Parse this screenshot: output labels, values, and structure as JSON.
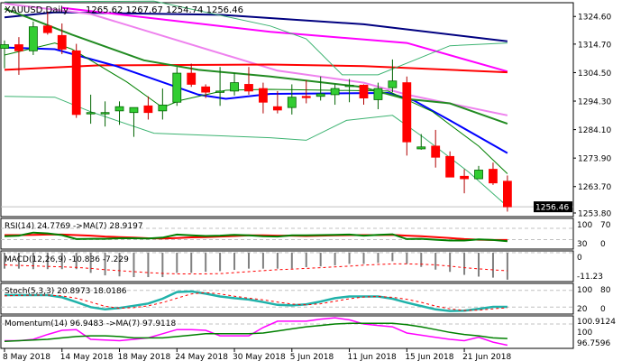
{
  "header": {
    "symbol": "XAUUSD,Daily",
    "ohlc": "1265.62 1267.67 1254.74 1256.46"
  },
  "colors": {
    "bull": "#32CD32",
    "bull_edge": "#006400",
    "bear": "#FF0000",
    "bear_edge": "#B00000",
    "grid": "#C0C0C0"
  },
  "chart_data": [
    {
      "type": "candlestick",
      "title": "XAUUSD,Daily",
      "ylim": [
        1253.6,
        1329.2
      ],
      "ytick_labels": [
        "1324.60",
        "1314.70",
        "1304.50",
        "1294.30",
        "1284.10",
        "1273.90",
        "1263.70",
        "1253.80"
      ],
      "current_price_label": "1256.46",
      "current_price": 1256.46,
      "x_labels": [
        {
          "candle": 1,
          "label": "8 May 2018"
        },
        {
          "candle": 5,
          "label": "14 May 2018"
        },
        {
          "candle": 9,
          "label": "18 May 2018"
        },
        {
          "candle": 13,
          "label": "24 May 2018"
        },
        {
          "candle": 17,
          "label": "30 May 2018"
        },
        {
          "candle": 21,
          "label": "5 Jun 2018"
        },
        {
          "candle": 25,
          "label": "11 Jun 2018"
        },
        {
          "candle": 29,
          "label": "15 Jun 2018"
        },
        {
          "candle": 33,
          "label": "21 Jun 2018"
        }
      ],
      "candles": [
        [
          1313.2,
          1316.0,
          1306.0,
          1314.5
        ],
        [
          1314.5,
          1317.2,
          1303.7,
          1312.3
        ],
        [
          1312.3,
          1322.8,
          1310.8,
          1320.9
        ],
        [
          1321.2,
          1326.4,
          1318.1,
          1318.8
        ],
        [
          1317.8,
          1322.1,
          1311.1,
          1312.9
        ],
        [
          1312.3,
          1314.8,
          1288.3,
          1289.5
        ],
        [
          1289.9,
          1296.6,
          1286.2,
          1290.2
        ],
        [
          1289.9,
          1294.2,
          1285.2,
          1290.2
        ],
        [
          1290.8,
          1294.2,
          1285.8,
          1292.3
        ],
        [
          1290.2,
          1292.0,
          1281.5,
          1292.0
        ],
        [
          1292.6,
          1296.0,
          1287.7,
          1290.2
        ],
        [
          1290.8,
          1298.8,
          1287.7,
          1292.9
        ],
        [
          1293.9,
          1306.5,
          1292.6,
          1304.3
        ],
        [
          1304.3,
          1307.7,
          1299.4,
          1300.3
        ],
        [
          1299.4,
          1300.3,
          1295.4,
          1297.5
        ],
        [
          1297.5,
          1306.5,
          1292.6,
          1297.9
        ],
        [
          1297.9,
          1304.3,
          1296.3,
          1300.9
        ],
        [
          1300.3,
          1306.5,
          1296.6,
          1297.9
        ],
        [
          1298.8,
          1300.9,
          1289.9,
          1293.9
        ],
        [
          1292.3,
          1297.9,
          1289.9,
          1291.1
        ],
        [
          1292.0,
          1300.3,
          1289.5,
          1295.7
        ],
        [
          1296.0,
          1301.8,
          1293.5,
          1295.7
        ],
        [
          1296.0,
          1303.1,
          1294.5,
          1296.9
        ],
        [
          1296.6,
          1300.3,
          1293.0,
          1298.8
        ],
        [
          1299.7,
          1302.2,
          1293.9,
          1300.0
        ],
        [
          1300.0,
          1300.3,
          1293.0,
          1295.4
        ],
        [
          1294.8,
          1300.9,
          1291.4,
          1298.8
        ],
        [
          1299.1,
          1309.2,
          1297.5,
          1301.5
        ],
        [
          1300.9,
          1303.1,
          1274.8,
          1279.7
        ],
        [
          1277.2,
          1282.5,
          1276.9,
          1277.9
        ],
        [
          1278.2,
          1284.0,
          1270.5,
          1274.2
        ],
        [
          1274.5,
          1276.3,
          1267.1,
          1267.1
        ],
        [
          1267.4,
          1269.9,
          1261.3,
          1266.5
        ],
        [
          1266.5,
          1271.1,
          1266.5,
          1269.6
        ],
        [
          1269.9,
          1272.3,
          1264.3,
          1265.0
        ],
        [
          1265.62,
          1267.67,
          1254.74,
          1256.46
        ]
      ],
      "overlays": [
        {
          "name": "ma-navy",
          "color": "#000080",
          "width": 2,
          "points": [
            [
              1,
              1324.3
            ],
            [
              4.5,
              1326.1
            ],
            [
              16,
              1325.2
            ],
            [
              26,
              1321.8
            ],
            [
              36,
              1315.7
            ]
          ]
        },
        {
          "name": "ma-magenta",
          "color": "#FF00FF",
          "width": 2,
          "points": [
            [
              5,
              1327.7
            ],
            [
              19.5,
              1319.1
            ],
            [
              29,
              1315.1
            ],
            [
              36,
              1304.9
            ]
          ]
        },
        {
          "name": "ma-violet",
          "color": "#EE82EE",
          "width": 2,
          "points": [
            [
              1,
              1329.2
            ],
            [
              7,
              1325.5
            ],
            [
              20,
              1305.2
            ],
            [
              26,
              1300.9
            ],
            [
              29,
              1296.6
            ],
            [
              36,
              1289.2
            ]
          ]
        },
        {
          "name": "ma-red",
          "color": "#FF0000",
          "width": 2,
          "points": [
            [
              1,
              1305.5
            ],
            [
              7.6,
              1307.1
            ],
            [
              19.5,
              1307.4
            ],
            [
              26,
              1306.8
            ],
            [
              36,
              1304.6
            ]
          ]
        },
        {
          "name": "ma-blue",
          "color": "#0000FF",
          "width": 2,
          "points": [
            [
              1,
              1313.5
            ],
            [
              4.5,
              1312.9
            ],
            [
              8.8,
              1306.8
            ],
            [
              14.5,
              1296.6
            ],
            [
              16.4,
              1295.1
            ],
            [
              19.5,
              1296.9
            ],
            [
              27.7,
              1297.2
            ],
            [
              29.5,
              1294.5
            ],
            [
              32,
              1287.4
            ],
            [
              36,
              1275.7
            ]
          ]
        },
        {
          "name": "ma-green",
          "color": "#228B22",
          "width": 2,
          "points": [
            [
              1,
              1327.4
            ],
            [
              2.6,
              1324.3
            ],
            [
              5.7,
              1318.1
            ],
            [
              10.7,
              1308.9
            ],
            [
              14.5,
              1305.5
            ],
            [
              19.5,
              1303.1
            ],
            [
              25.8,
              1299.4
            ],
            [
              28.9,
              1295.1
            ],
            [
              32,
              1293.5
            ],
            [
              36,
              1286.2
            ]
          ]
        },
        {
          "name": "bollinger-middle",
          "color": "#008000",
          "width": 1,
          "points": [
            [
              1,
              1310.8
            ],
            [
              4.5,
              1315.1
            ],
            [
              5.7,
              1312.9
            ],
            [
              9.5,
              1301.2
            ],
            [
              12,
              1292.0
            ],
            [
              13.2,
              1294.5
            ],
            [
              16.4,
              1298.2
            ],
            [
              19.5,
              1298.5
            ],
            [
              27.7,
              1297.9
            ],
            [
              30.8,
              1290.5
            ],
            [
              34,
              1278.2
            ],
            [
              36,
              1268.3
            ]
          ]
        },
        {
          "name": "bollinger-upper",
          "color": "#3CB371",
          "width": 1,
          "points": [
            [
              1,
              1329.8
            ],
            [
              11.4,
              1330.1
            ],
            [
              19.5,
              1321.2
            ],
            [
              22,
              1316.6
            ],
            [
              24.5,
              1303.7
            ],
            [
              27,
              1303.7
            ],
            [
              29.5,
              1308.9
            ],
            [
              32,
              1314.1
            ],
            [
              36,
              1315.1
            ]
          ]
        },
        {
          "name": "bollinger-lower",
          "color": "#3CB371",
          "width": 1,
          "points": [
            [
              1,
              1296.0
            ],
            [
              4.5,
              1295.7
            ],
            [
              7,
              1290.5
            ],
            [
              11.4,
              1282.8
            ],
            [
              19.5,
              1281.2
            ],
            [
              22,
              1280.3
            ],
            [
              24.8,
              1287.4
            ],
            [
              28,
              1289.2
            ],
            [
              30.2,
              1281.2
            ],
            [
              33.3,
              1268.9
            ],
            [
              36,
              1256.6
            ]
          ]
        }
      ]
    },
    {
      "type": "line",
      "title": "RSI(14) 24.7769  ->MA(7) 28.9197",
      "ylim": [
        0,
        100
      ],
      "levels": [
        70,
        30
      ],
      "ytick_labels": [
        "100",
        "70",
        "30",
        "0"
      ],
      "series": [
        {
          "name": "RSI(14)",
          "color": "#008000",
          "values": [
            42,
            44,
            55,
            52,
            46,
            32,
            33,
            33,
            35,
            35,
            34,
            37,
            48,
            45,
            43,
            44,
            47,
            45,
            42,
            41,
            45,
            45,
            46,
            47,
            48,
            44,
            47,
            49,
            32,
            33,
            30,
            27,
            27,
            31,
            29,
            24.7769
          ]
        },
        {
          "name": "MA(7)",
          "color": "#FF0000",
          "values": [
            46,
            46,
            47,
            48,
            48,
            46,
            44,
            41,
            39,
            37,
            35,
            34,
            36,
            38,
            39,
            41,
            43,
            45,
            45,
            44,
            44,
            43,
            44,
            45,
            46,
            46,
            46,
            47,
            44,
            42,
            39,
            36,
            32,
            30,
            29,
            28.9197
          ]
        }
      ]
    },
    {
      "type": "bar",
      "title": "MACD(12,26,9) -10.836 -7.229",
      "ylim": [
        -11.23,
        0
      ],
      "ytick_labels": [
        "0",
        "-11.23"
      ],
      "series": [
        {
          "name": "MACD",
          "color": "#808080",
          "values": [
            -6.4,
            -6.4,
            -6.6,
            -6.6,
            -6.6,
            -6.6,
            -8.1,
            -9.1,
            -9.5,
            -9.8,
            -9.8,
            -9.8,
            -8.1,
            -8.1,
            -7.7,
            -7.4,
            -6.9,
            -6.4,
            -6.4,
            -6.4,
            -6.4,
            -5.8,
            -5.5,
            -5.1,
            -4.5,
            -4.5,
            -4.1,
            -3.4,
            -4.5,
            -5.7,
            -6.8,
            -7.7,
            -8.9,
            -9.6,
            -10.0,
            -10.836
          ]
        },
        {
          "name": "Signal",
          "color": "#FF0000",
          "values": [
            -4.9,
            -5.1,
            -5.3,
            -5.5,
            -5.7,
            -5.9,
            -6.3,
            -6.8,
            -7.2,
            -7.6,
            -8.0,
            -8.3,
            -8.5,
            -8.5,
            -8.5,
            -8.4,
            -8.0,
            -7.6,
            -7.2,
            -6.8,
            -6.6,
            -6.3,
            -6.0,
            -5.7,
            -5.4,
            -5.0,
            -4.7,
            -4.5,
            -4.5,
            -4.6,
            -4.9,
            -5.4,
            -6.0,
            -6.5,
            -6.9,
            -7.229
          ]
        }
      ]
    },
    {
      "type": "line",
      "title": "Stoch(5,3,3) 20.8973 18.0186",
      "ylim": [
        0,
        100
      ],
      "levels": [
        80,
        20
      ],
      "ytick_labels": [
        "100",
        "80",
        "20",
        "0"
      ],
      "series": [
        {
          "name": "Main",
          "color": "#20B2AA",
          "values": [
            63,
            63,
            63,
            63,
            55,
            38,
            20,
            12,
            17,
            25,
            33,
            50,
            74,
            76,
            68,
            58,
            52,
            47,
            38,
            28,
            26,
            30,
            40,
            52,
            58,
            58,
            58,
            50,
            36,
            24,
            12,
            6,
            7,
            14,
            21,
            20.8973
          ]
        },
        {
          "name": "Signal",
          "color": "#FF0000",
          "values": [
            60,
            62,
            63,
            63,
            60,
            52,
            38,
            23,
            16,
            18,
            25,
            36,
            52,
            67,
            72,
            67,
            59,
            52,
            46,
            38,
            31,
            28,
            32,
            41,
            50,
            56,
            58,
            55,
            48,
            37,
            24,
            14,
            8,
            9,
            14,
            18.0186
          ]
        }
      ]
    },
    {
      "type": "line",
      "title": "Momentum(14) 96.9483  ->MA(7) 97.9118",
      "ylim": [
        96.7596,
        100.9124
      ],
      "levels": [
        100
      ],
      "ytick_labels": [
        "100",
        "100.9124",
        "96.7596"
      ],
      "series": [
        {
          "name": "Momentum(14)",
          "color": "#FF00FF",
          "values": [
            97.6,
            97.6,
            97.8,
            98.5,
            99.1,
            99.2,
            97.8,
            97.7,
            97.6,
            97.8,
            98.0,
            98.6,
            99.2,
            99.2,
            99.1,
            98.3,
            98.3,
            98.3,
            99.5,
            100.4,
            100.4,
            100.4,
            100.7,
            100.9,
            100.6,
            100.0,
            99.8,
            99.6,
            98.7,
            98.4,
            98.1,
            97.8,
            97.6,
            98.1,
            97.4,
            96.9483
          ]
        },
        {
          "name": "MA(7)",
          "color": "#008000",
          "values": [
            97.5,
            97.6,
            97.7,
            97.8,
            98.0,
            98.2,
            98.3,
            98.3,
            98.2,
            98.0,
            98.0,
            98.0,
            98.2,
            98.4,
            98.6,
            98.6,
            98.6,
            98.6,
            98.7,
            99.0,
            99.3,
            99.6,
            99.8,
            100.0,
            100.1,
            100.1,
            100.1,
            100.1,
            99.9,
            99.6,
            99.2,
            98.8,
            98.5,
            98.3,
            98.0,
            97.9118
          ]
        }
      ]
    }
  ]
}
